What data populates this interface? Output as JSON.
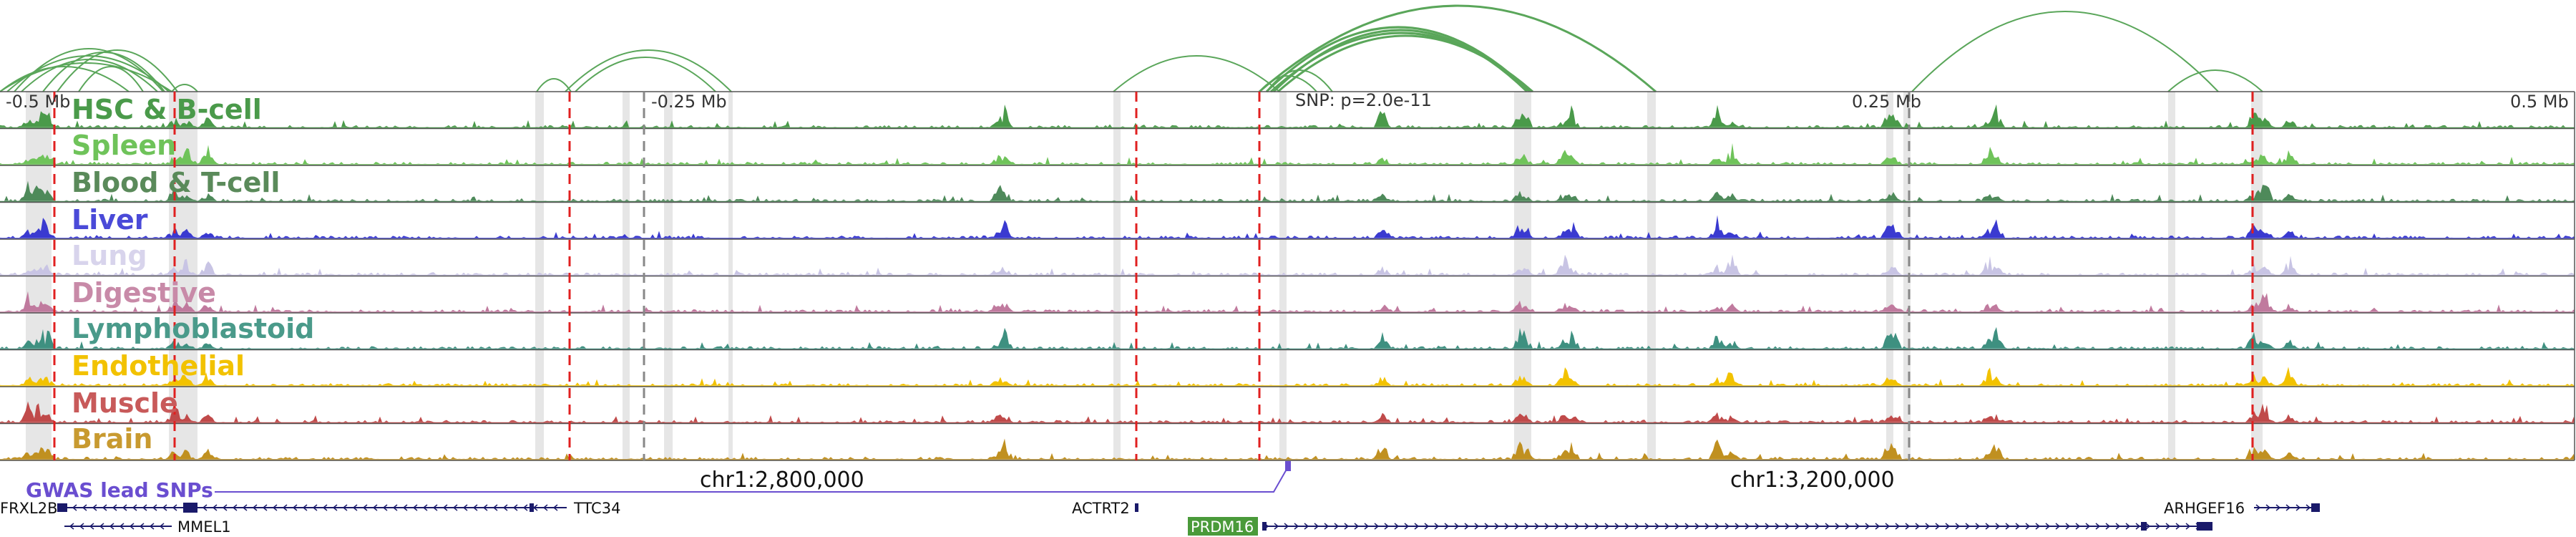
{
  "axis": {
    "ticks": [
      {
        "label": "-0.5 Mb",
        "offset_mb": -0.5
      },
      {
        "label": "-0.25 Mb",
        "offset_mb": -0.25
      },
      {
        "label": "0.25 Mb",
        "offset_mb": 0.25
      },
      {
        "label": "0.5 Mb",
        "offset_mb": 0.5
      }
    ],
    "snp_annotation": "SNP: p=2.0e-11"
  },
  "tracks": [
    {
      "name": "HSC & B-cell",
      "color": "#4a9a4a",
      "label_color": "#4a9a4a"
    },
    {
      "name": "Spleen",
      "color": "#6fc35a",
      "label_color": "#6fc35a"
    },
    {
      "name": "Blood & T-cell",
      "color": "#4e8a5a",
      "label_color": "#5a8a5a"
    },
    {
      "name": "Liver",
      "color": "#3a3ad0",
      "label_color": "#4a4ad8"
    },
    {
      "name": "Lung",
      "color": "#c8c4e4",
      "label_color": "#d8d4ec"
    },
    {
      "name": "Digestive",
      "color": "#c07a9e",
      "label_color": "#c88aa8"
    },
    {
      "name": "Lymphoblastoid",
      "color": "#3e9080",
      "label_color": "#4a9a8a"
    },
    {
      "name": "Endothelial",
      "color": "#f2c200",
      "label_color": "#f2c200"
    },
    {
      "name": "Muscle",
      "color": "#c04a4a",
      "label_color": "#c85a5a"
    },
    {
      "name": "Brain",
      "color": "#c09020",
      "label_color": "#c89a30"
    }
  ],
  "gwas": {
    "label": "GWAS lead SNPs",
    "color": "#6a4ed0"
  },
  "coordinates": [
    "chr1:2,800,000",
    "chr1:3,200,000"
  ],
  "genes": [
    {
      "name": "FRXL2B",
      "strand": "-",
      "label_side": "left"
    },
    {
      "name": "TTC34",
      "strand": "-",
      "label_side": "right"
    },
    {
      "name": "MMEL1",
      "strand": "-",
      "label_side": "right"
    },
    {
      "name": "ACTRT2",
      "strand": "+",
      "label_side": "left"
    },
    {
      "name": "PRDM16",
      "strand": "+",
      "label_side": "left",
      "highlighted": true
    },
    {
      "name": "ARHGEF16",
      "strand": "+",
      "label_side": "left"
    }
  ],
  "colors": {
    "arc": "#5aa65a",
    "highlight_gene_bg": "#4a9a3a",
    "dashed_line": "#e02020",
    "gene_body": "#1a1a6a",
    "grey_band": "#d8d8d8"
  }
}
